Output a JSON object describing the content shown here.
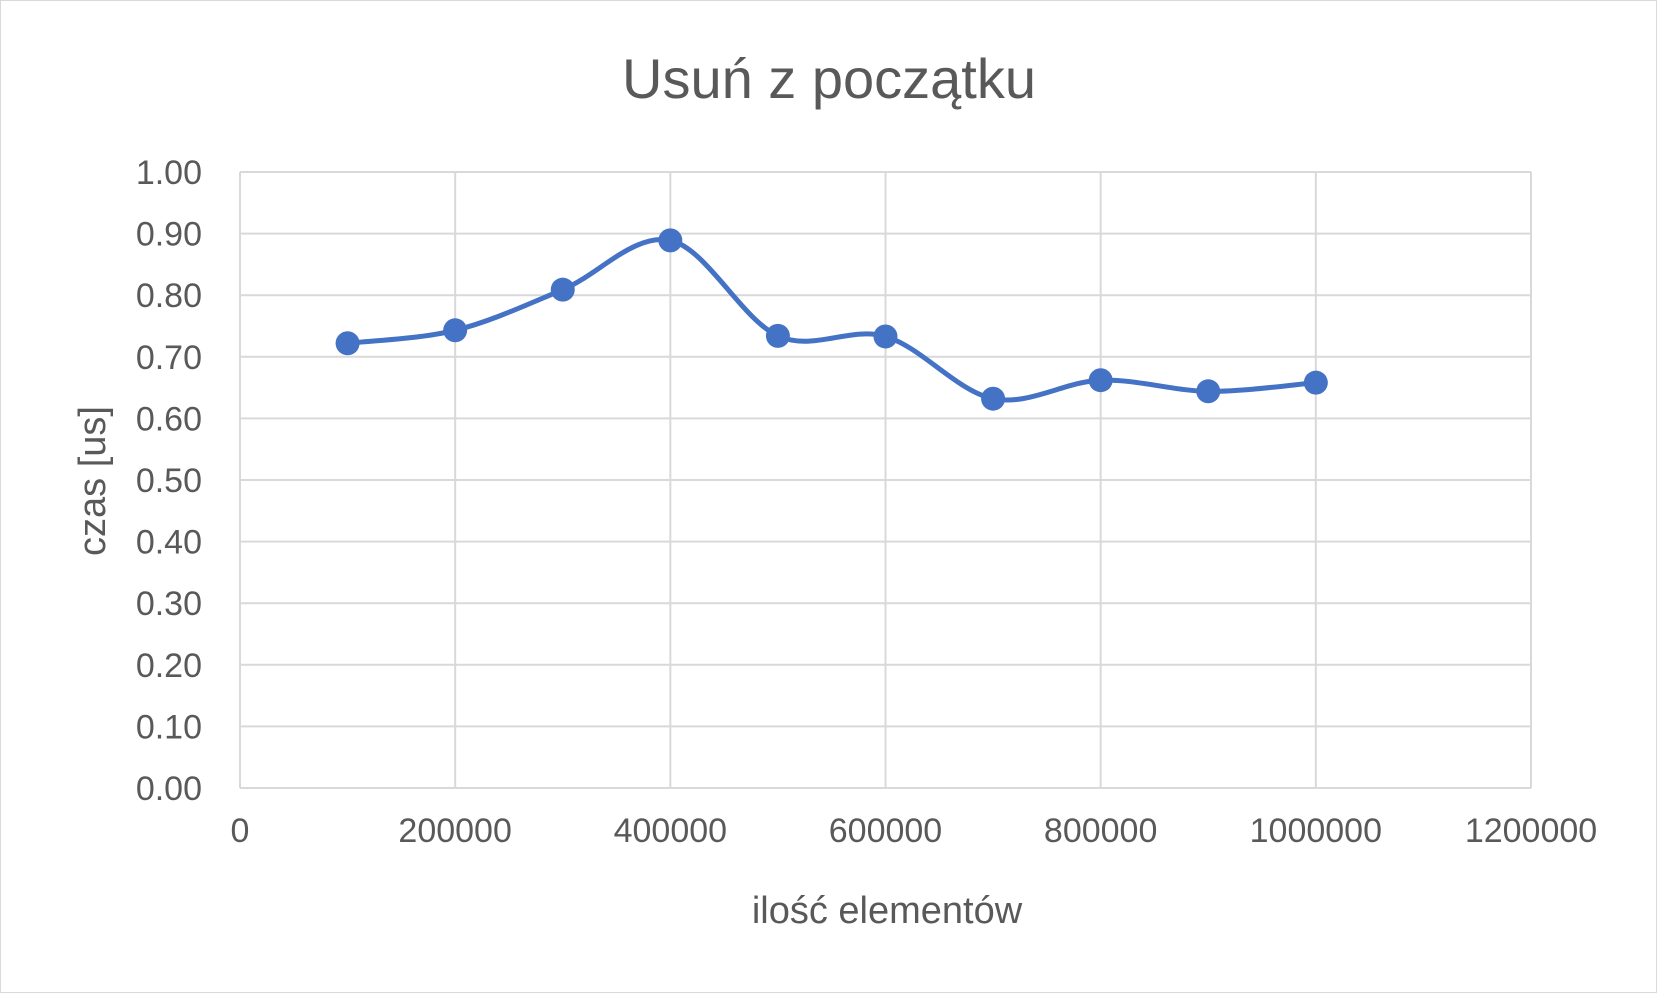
{
  "chart_data": {
    "type": "line",
    "title": "Usuń z początku",
    "xlabel": "ilość elementów",
    "ylabel": "czas [us]",
    "xlim": [
      0,
      1200000
    ],
    "ylim": [
      0,
      1.0
    ],
    "x_ticks": [
      0,
      200000,
      400000,
      600000,
      800000,
      1000000,
      1200000
    ],
    "x_tick_labels": [
      "0",
      "200000",
      "400000",
      "600000",
      "800000",
      "1000000",
      "1200000"
    ],
    "y_ticks": [
      0,
      0.1,
      0.2,
      0.3,
      0.4,
      0.5,
      0.6,
      0.7,
      0.8,
      0.9,
      1.0
    ],
    "y_tick_labels": [
      "0.00",
      "0.10",
      "0.20",
      "0.30",
      "0.40",
      "0.50",
      "0.60",
      "0.70",
      "0.80",
      "0.90",
      "1.00"
    ],
    "grid": true,
    "legend": "none",
    "smooth": true,
    "series": [
      {
        "color": "#4472c4",
        "marker": "circle",
        "x": [
          100000,
          200000,
          300000,
          400000,
          500000,
          600000,
          700000,
          800000,
          900000,
          1000000
        ],
        "y": [
          0.722,
          0.743,
          0.809,
          0.889,
          0.734,
          0.733,
          0.632,
          0.662,
          0.644,
          0.658
        ]
      }
    ]
  }
}
